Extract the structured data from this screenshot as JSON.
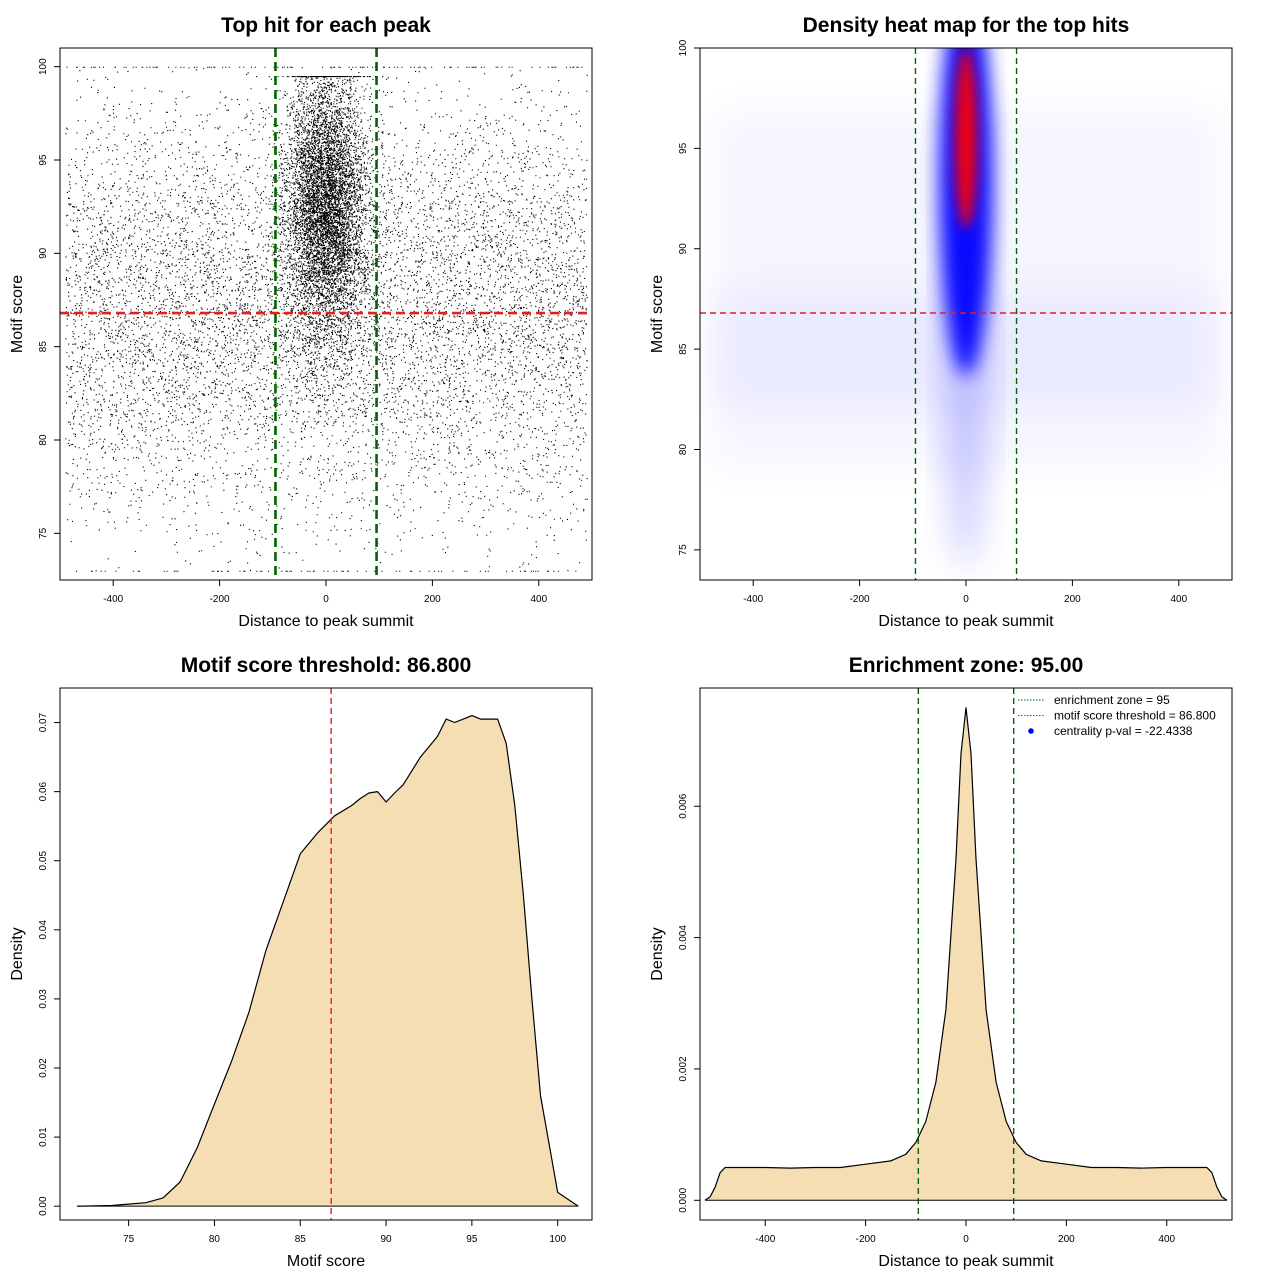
{
  "chart_data": [
    {
      "type": "scatter",
      "title": "Top hit for each peak",
      "xlabel": "Distance to peak summit",
      "ylabel": "Motif score",
      "xlim": [
        -500,
        500
      ],
      "ylim": [
        72.5,
        101
      ],
      "x_ticks": [
        -400,
        -200,
        0,
        200,
        400
      ],
      "x_tick_labels": [
        "-400",
        "-200",
        "0",
        "200",
        "400"
      ],
      "y_ticks": [
        75,
        80,
        85,
        90,
        95,
        100
      ],
      "y_tick_labels": [
        "75",
        "80",
        "85",
        "90",
        "95",
        "100"
      ],
      "grid": false,
      "point_color": "#000000",
      "vlines": [
        -95,
        95
      ],
      "vline_color": "#006400",
      "hline": 86.8,
      "hline_color": "#dd2222",
      "background_points": {
        "count": 9000,
        "x_range": [
          -490,
          490
        ],
        "y_mean": 87,
        "y_sd": 5.6,
        "y_range": [
          73,
          100
        ]
      },
      "center_points": {
        "count": 7000,
        "x_sd": 38,
        "y_mean": 92.5,
        "y_sd": 3.6,
        "y_range": [
          81,
          99.5
        ]
      }
    },
    {
      "type": "heatmap",
      "title": "Density heat map for the top hits",
      "xlabel": "Distance to peak summit",
      "ylabel": "Motif score",
      "xlim": [
        -500,
        500
      ],
      "ylim": [
        73.5,
        100
      ],
      "x_ticks": [
        -400,
        -200,
        0,
        200,
        400
      ],
      "x_tick_labels": [
        "-400",
        "-200",
        "0",
        "200",
        "400"
      ],
      "y_ticks": [
        75,
        80,
        85,
        90,
        95,
        100
      ],
      "y_tick_labels": [
        "75",
        "80",
        "85",
        "90",
        "95",
        "100"
      ],
      "grid": false,
      "color_scale": [
        "#ffffff",
        "#0000ff",
        "#ff0000"
      ],
      "hotspot": {
        "x": 0,
        "y": 95.5
      },
      "vlines": [
        -95,
        95
      ],
      "vline_color": "#006400",
      "hline": 86.8,
      "hline_color": "#dd2222"
    },
    {
      "type": "area",
      "title": "Motif score threshold: 86.800",
      "xlabel": "Motif score",
      "ylabel": "Density",
      "xlim": [
        71,
        102
      ],
      "ylim": [
        -0.002,
        0.075
      ],
      "x_ticks": [
        75,
        80,
        85,
        90,
        95,
        100
      ],
      "x_tick_labels": [
        "75",
        "80",
        "85",
        "90",
        "95",
        "100"
      ],
      "y_ticks": [
        0,
        0.01,
        0.02,
        0.03,
        0.04,
        0.05,
        0.06,
        0.07
      ],
      "y_tick_labels": [
        "0.00",
        "0.01",
        "0.02",
        "0.03",
        "0.04",
        "0.05",
        "0.06",
        "0.07"
      ],
      "grid": false,
      "fill_color": "#f5deb3",
      "vline": 86.8,
      "vline_color": "#dd2222",
      "x": [
        72,
        74,
        76,
        77,
        78,
        79,
        80,
        81,
        82,
        83,
        84,
        85,
        86,
        86.8,
        87,
        88,
        88.5,
        89,
        89.5,
        90,
        90.5,
        91,
        92,
        93,
        93.5,
        94,
        94.5,
        95,
        95.5,
        96,
        96.5,
        97,
        97.5,
        98,
        98.5,
        99,
        100,
        101.2
      ],
      "values": [
        0,
        0.0001,
        0.0005,
        0.0012,
        0.0035,
        0.0085,
        0.0148,
        0.021,
        0.028,
        0.037,
        0.044,
        0.051,
        0.054,
        0.056,
        0.0565,
        0.058,
        0.059,
        0.0598,
        0.06,
        0.0585,
        0.0598,
        0.061,
        0.065,
        0.068,
        0.0705,
        0.07,
        0.0705,
        0.071,
        0.0705,
        0.0705,
        0.0705,
        0.067,
        0.058,
        0.045,
        0.03,
        0.016,
        0.002,
        0
      ]
    },
    {
      "type": "area",
      "title": "Enrichment zone: 95.00",
      "xlabel": "Distance to peak summit",
      "ylabel": "Density",
      "xlim": [
        -530,
        530
      ],
      "ylim": [
        -0.0003,
        0.0078
      ],
      "x_ticks": [
        -400,
        -200,
        0,
        200,
        400
      ],
      "x_tick_labels": [
        "-400",
        "-200",
        "0",
        "200",
        "400"
      ],
      "y_ticks": [
        0,
        0.002,
        0.004,
        0.006
      ],
      "y_tick_labels": [
        "0.000",
        "0.002",
        "0.004",
        "0.006"
      ],
      "grid": false,
      "fill_color": "#f5deb3",
      "vlines": [
        -95,
        95
      ],
      "vline_color": "#006400",
      "x": [
        -520,
        -510,
        -500,
        -490,
        -480,
        -450,
        -400,
        -350,
        -300,
        -250,
        -200,
        -150,
        -120,
        -100,
        -80,
        -60,
        -40,
        -20,
        -10,
        0,
        10,
        20,
        40,
        60,
        80,
        100,
        120,
        150,
        200,
        250,
        300,
        350,
        400,
        450,
        480,
        490,
        500,
        510,
        520
      ],
      "values": [
        0,
        5e-05,
        0.0002,
        0.00042,
        0.0005,
        0.0005,
        0.0005,
        0.00049,
        0.0005,
        0.0005,
        0.00055,
        0.0006,
        0.0007,
        0.00088,
        0.0012,
        0.0018,
        0.0029,
        0.0052,
        0.0068,
        0.0075,
        0.0068,
        0.0052,
        0.0029,
        0.0018,
        0.0012,
        0.00088,
        0.0007,
        0.0006,
        0.00055,
        0.0005,
        0.0005,
        0.00049,
        0.0005,
        0.0005,
        0.0005,
        0.00042,
        0.0002,
        5e-05,
        0
      ],
      "legend": {
        "position": "top-right",
        "entries": [
          {
            "label": "enrichment zone = 95",
            "color": "#006400",
            "style": "dotted-line"
          },
          {
            "label": "motif score threshold = 86.800",
            "color": "#dd2222",
            "style": "dotted-line"
          },
          {
            "label": "centrality p-val = -22.4338",
            "color": "#0000ff",
            "style": "point"
          }
        ]
      }
    }
  ]
}
